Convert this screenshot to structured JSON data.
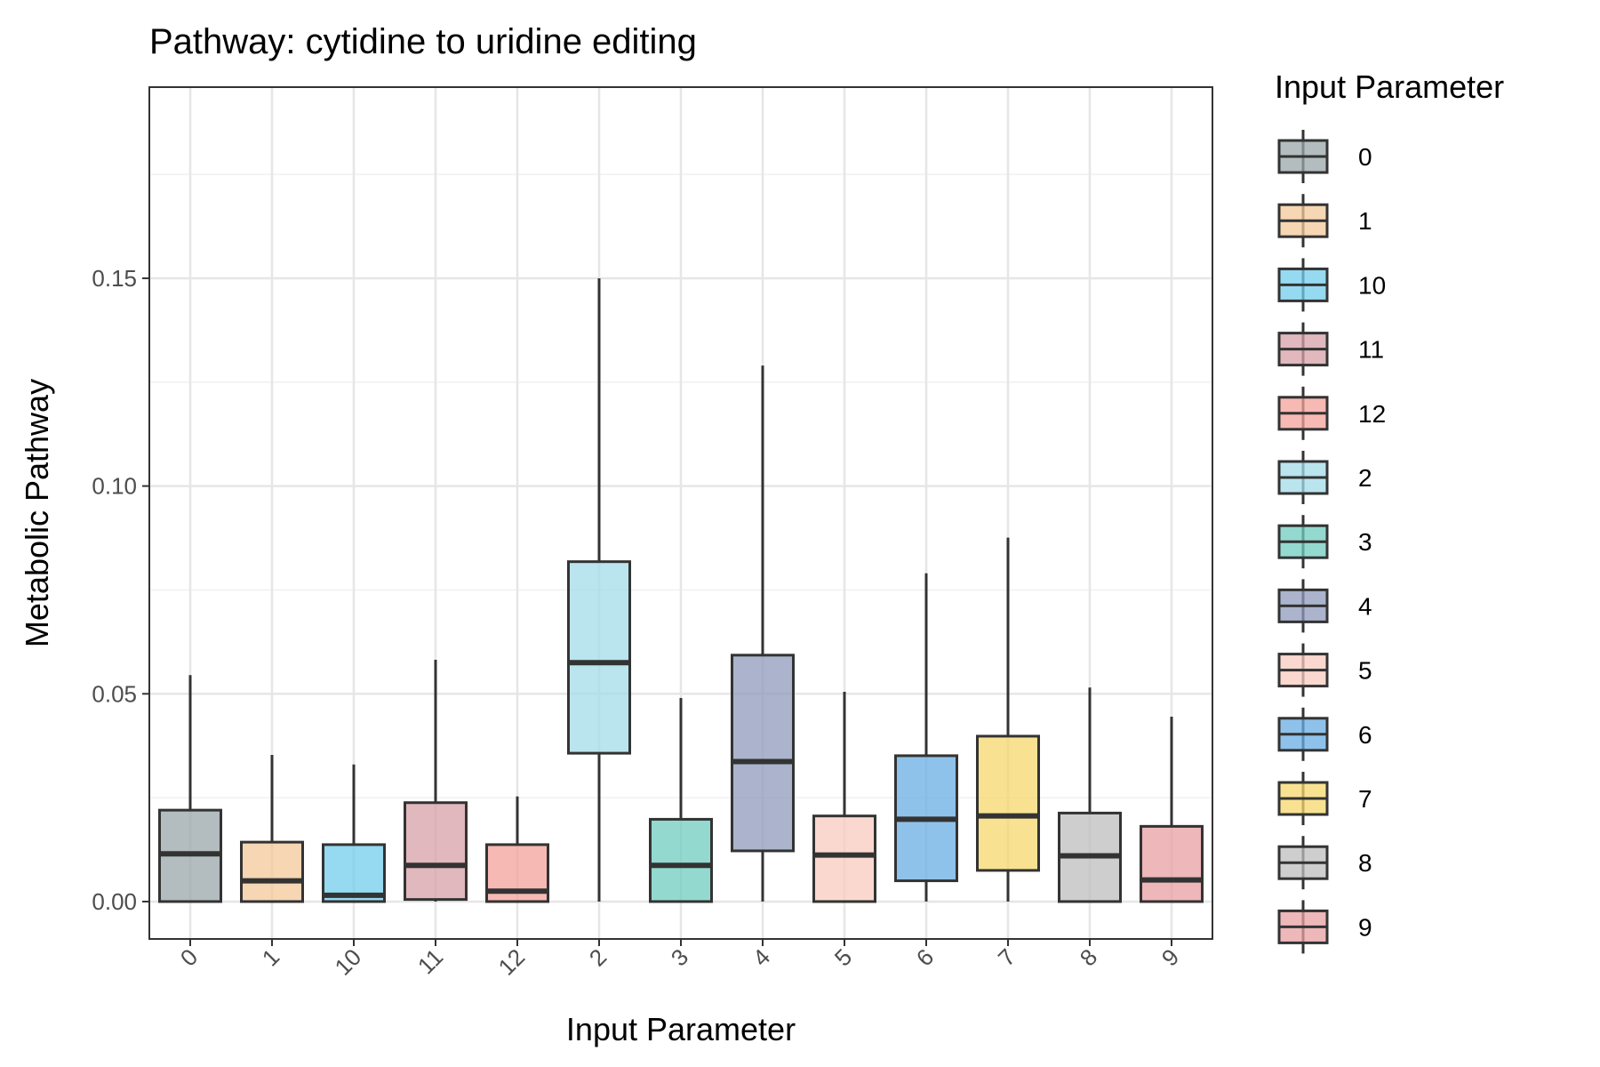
{
  "chart_data": {
    "type": "boxplot",
    "title": "Pathway: cytidine to uridine editing",
    "xlabel": "Input Parameter",
    "ylabel": "Metabolic Pathway",
    "ylim": [
      -0.009,
      0.196
    ],
    "yticks": [
      0.0,
      0.05,
      0.1,
      0.15
    ],
    "ytick_labels": [
      "0.00",
      "0.05",
      "0.10",
      "0.15"
    ],
    "grid": true,
    "legend": {
      "title": "Input Parameter",
      "position": "right"
    },
    "categories": [
      "0",
      "1",
      "10",
      "11",
      "12",
      "2",
      "3",
      "4",
      "5",
      "6",
      "7",
      "8",
      "9"
    ],
    "boxes": [
      {
        "category": "0",
        "min": 0.0,
        "q1": 0.0,
        "median": 0.0115,
        "q3": 0.022,
        "max": 0.0545,
        "color": "#9aa5a8"
      },
      {
        "category": "1",
        "min": 0.0,
        "q1": 0.0,
        "median": 0.005,
        "q3": 0.0143,
        "max": 0.0353,
        "color": "#f3c89a"
      },
      {
        "category": "10",
        "min": 0.0,
        "q1": 0.0,
        "median": 0.0015,
        "q3": 0.0137,
        "max": 0.033,
        "color": "#71cdeb"
      },
      {
        "category": "11",
        "min": 0.0,
        "q1": 0.0005,
        "median": 0.0087,
        "q3": 0.0238,
        "max": 0.0582,
        "color": "#d6a0a8"
      },
      {
        "category": "12",
        "min": 0.0,
        "q1": 0.0,
        "median": 0.0025,
        "q3": 0.0137,
        "max": 0.0253,
        "color": "#f4a19a"
      },
      {
        "category": "2",
        "min": 0.0,
        "q1": 0.0357,
        "median": 0.0575,
        "q3": 0.0818,
        "max": 0.15,
        "color": "#a3dbe8"
      },
      {
        "category": "3",
        "min": 0.0,
        "q1": 0.0,
        "median": 0.0087,
        "q3": 0.0198,
        "max": 0.049,
        "color": "#6fccbf"
      },
      {
        "category": "4",
        "min": 0.0,
        "q1": 0.0122,
        "median": 0.0337,
        "q3": 0.0593,
        "max": 0.129,
        "color": "#8f9bbb"
      },
      {
        "category": "5",
        "min": 0.0,
        "q1": 0.0,
        "median": 0.0112,
        "q3": 0.0206,
        "max": 0.0505,
        "color": "#f8cbc0"
      },
      {
        "category": "6",
        "min": 0.0,
        "q1": 0.005,
        "median": 0.0198,
        "q3": 0.0351,
        "max": 0.079,
        "color": "#6aaee3"
      },
      {
        "category": "7",
        "min": 0.0,
        "q1": 0.0075,
        "median": 0.0206,
        "q3": 0.0398,
        "max": 0.0876,
        "color": "#f6d86c"
      },
      {
        "category": "8",
        "min": 0.0,
        "q1": 0.0,
        "median": 0.011,
        "q3": 0.0213,
        "max": 0.0515,
        "color": "#bebebe"
      },
      {
        "category": "9",
        "min": 0.0,
        "q1": 0.0,
        "median": 0.0052,
        "q3": 0.0181,
        "max": 0.0445,
        "color": "#e89fa2"
      }
    ]
  }
}
